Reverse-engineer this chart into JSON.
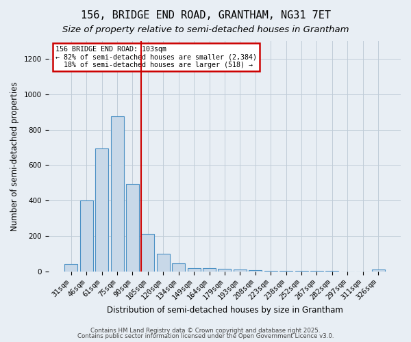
{
  "title1": "156, BRIDGE END ROAD, GRANTHAM, NG31 7ET",
  "title2": "Size of property relative to semi-detached houses in Grantham",
  "xlabel": "Distribution of semi-detached houses by size in Grantham",
  "ylabel": "Number of semi-detached properties",
  "categories": [
    "31sqm",
    "46sqm",
    "61sqm",
    "75sqm",
    "90sqm",
    "105sqm",
    "120sqm",
    "134sqm",
    "149sqm",
    "164sqm",
    "179sqm",
    "193sqm",
    "208sqm",
    "223sqm",
    "238sqm",
    "252sqm",
    "267sqm",
    "282sqm",
    "297sqm",
    "311sqm",
    "326sqm"
  ],
  "values": [
    40,
    400,
    695,
    875,
    495,
    210,
    100,
    45,
    20,
    18,
    15,
    10,
    8,
    2,
    2,
    1,
    1,
    1,
    0,
    0,
    10
  ],
  "bar_color": "#c8d8e8",
  "bar_edge_color": "#4a90c4",
  "grid_color": "#c0ccd8",
  "background_color": "#e8eef4",
  "vline_x_index": 5,
  "vline_color": "#cc0000",
  "annotation_line1": "156 BRIDGE END ROAD: 103sqm",
  "annotation_line2": "← 82% of semi-detached houses are smaller (2,384)",
  "annotation_line3": "  18% of semi-detached houses are larger (518) →",
  "annotation_box_color": "#ffffff",
  "annotation_edge_color": "#cc0000",
  "ylim": [
    0,
    1300
  ],
  "yticks": [
    0,
    200,
    400,
    600,
    800,
    1000,
    1200
  ],
  "footer1": "Contains HM Land Registry data © Crown copyright and database right 2025.",
  "footer2": "Contains public sector information licensed under the Open Government Licence v3.0.",
  "title_fontsize": 11,
  "subtitle_fontsize": 9.5,
  "axis_label_fontsize": 8.5,
  "tick_fontsize": 7.5,
  "footer_fontsize": 6.2
}
